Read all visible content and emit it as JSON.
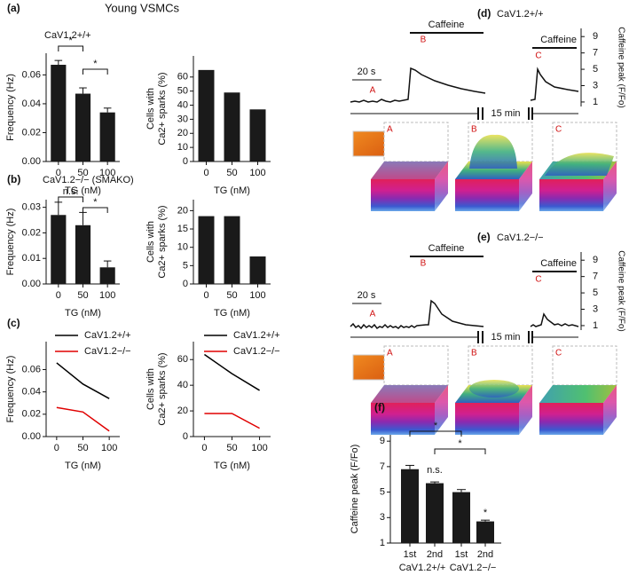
{
  "chart_data": [
    {
      "type": "bar",
      "title": "Young VSMCs",
      "panel_label": "(a)",
      "subtitle": "CaV1.2+/+",
      "categories": [
        "0",
        "50",
        "100"
      ],
      "values": [
        0.067,
        0.047,
        0.034
      ],
      "errors": [
        0.003,
        0.004,
        0.003
      ],
      "color": "#1a1a1a",
      "ylim": [
        0,
        0.075
      ],
      "yticks": [
        {
          "value": 0,
          "label": "0.00"
        },
        0.02,
        0.04,
        0.06
      ],
      "xlabel": "TG (nM)",
      "ylabel": "Frequency (Hz)",
      "annotations": [
        "*",
        "*"
      ]
    },
    {
      "type": "bar",
      "categories": [
        "0",
        "50",
        "100"
      ],
      "values": [
        65,
        49,
        37
      ],
      "color": "#1a1a1a",
      "ylim": [
        0,
        75
      ],
      "yticks": [
        0,
        10,
        20,
        30,
        40,
        50,
        60
      ],
      "xlabel": "TG (nM)",
      "ylabel": [
        "Cells with",
        "Ca2+ sparks (%)"
      ]
    },
    {
      "type": "bar",
      "panel_label": "(b)",
      "subtitle": "CaV1.2−/− (SMAKO)",
      "categories": [
        "0",
        "50",
        "100"
      ],
      "values": [
        0.027,
        0.023,
        0.0065
      ],
      "errors": [
        0.005,
        0.005,
        0.0025
      ],
      "color": "#1a1a1a",
      "ylim": [
        0,
        0.033
      ],
      "yticks": [
        {
          "value": 0,
          "label": "0.00"
        },
        0.01,
        0.02,
        0.03
      ],
      "xlabel": "TG (nM)",
      "ylabel": "Frequency (Hz)",
      "annotations": [
        "n.s.",
        "*"
      ]
    },
    {
      "type": "bar",
      "categories": [
        "0",
        "50",
        "100"
      ],
      "values": [
        18.5,
        18.5,
        7.5
      ],
      "color": "#1a1a1a",
      "ylim": [
        0,
        23
      ],
      "yticks": [
        0,
        5,
        10,
        15,
        20
      ],
      "xlabel": "TG (nM)",
      "ylabel": [
        "Cells with",
        "Ca2+ sparks (%)"
      ]
    },
    {
      "type": "line",
      "panel_label": "(c)",
      "x": [
        0,
        50,
        100
      ],
      "xlim": [
        -20,
        120
      ],
      "xticks": [
        0,
        50,
        100
      ],
      "series": [
        {
          "name": "CaV1.2+/+",
          "color": "#000000",
          "values": [
            0.066,
            0.047,
            0.034
          ]
        },
        {
          "name": "CaV1.2−/−",
          "color": "#e00000",
          "values": [
            0.026,
            0.022,
            0.005
          ]
        }
      ],
      "ylim": [
        0,
        0.085
      ],
      "yticks": [
        {
          "value": 0,
          "label": "0.00"
        },
        0.02,
        0.04,
        0.06
      ],
      "xlabel": "TG (nM)",
      "ylabel": "Frequency (Hz)"
    },
    {
      "type": "line",
      "x": [
        0,
        50,
        100
      ],
      "xlim": [
        -20,
        120
      ],
      "xticks": [
        0,
        50,
        100
      ],
      "series": [
        {
          "name": "CaV1.2+/+",
          "color": "#000000",
          "values": [
            64,
            49,
            36
          ]
        },
        {
          "name": "CaV1.2−/−",
          "color": "#e00000",
          "values": [
            18,
            18,
            6.5
          ]
        }
      ],
      "ylim": [
        0,
        74
      ],
      "yticks": [
        0,
        20,
        40,
        60
      ],
      "xlabel": "TG (nM)",
      "ylabel": [
        "Cells with",
        "Ca2+ sparks (%)"
      ]
    },
    {
      "type": "trace",
      "panel_label": "(d)",
      "title": "CaV1.2+/+",
      "stimulus": [
        "Caffeine",
        "Caffeine"
      ],
      "scale_bar": "20 s",
      "gap_label": "15 min",
      "point_labels": [
        "A",
        "B",
        "C"
      ],
      "image_labels": [
        "A",
        "B",
        "C"
      ],
      "ylim": [
        0.45,
        10
      ],
      "yticks": [
        1,
        3,
        5,
        7,
        9
      ],
      "ylabel": "Caffeine peak (F/Fo)"
    },
    {
      "type": "trace",
      "panel_label": "(e)",
      "title": "CaV1.2−/−",
      "stimulus": [
        "Caffeine",
        "Caffeine"
      ],
      "scale_bar": "20 s",
      "gap_label": "15 min",
      "point_labels": [
        "A",
        "B",
        "C"
      ],
      "image_labels": [
        "A",
        "B",
        "C"
      ],
      "ylim": [
        0.45,
        10
      ],
      "yticks": [
        1,
        3,
        5,
        7,
        9
      ],
      "ylabel": "Caffeine peak (F/Fo)"
    },
    {
      "type": "bar",
      "panel_label": "(f)",
      "categories": [
        "1st",
        "2nd",
        "1st",
        "2nd"
      ],
      "groups": [
        "CaV1.2+/+",
        "CaV1.2−/−"
      ],
      "values": [
        6.8,
        5.7,
        5.0,
        2.7
      ],
      "errors": [
        0.3,
        0.1,
        0.2,
        0.1
      ],
      "color": "#1a1a1a",
      "ylim": [
        1,
        9.5
      ],
      "yticks": [
        1,
        3,
        5,
        7,
        9
      ],
      "ylabel": "Caffeine peak (F/Fo)",
      "annotations": [
        "*",
        "*",
        "n.s.",
        "*"
      ]
    }
  ]
}
